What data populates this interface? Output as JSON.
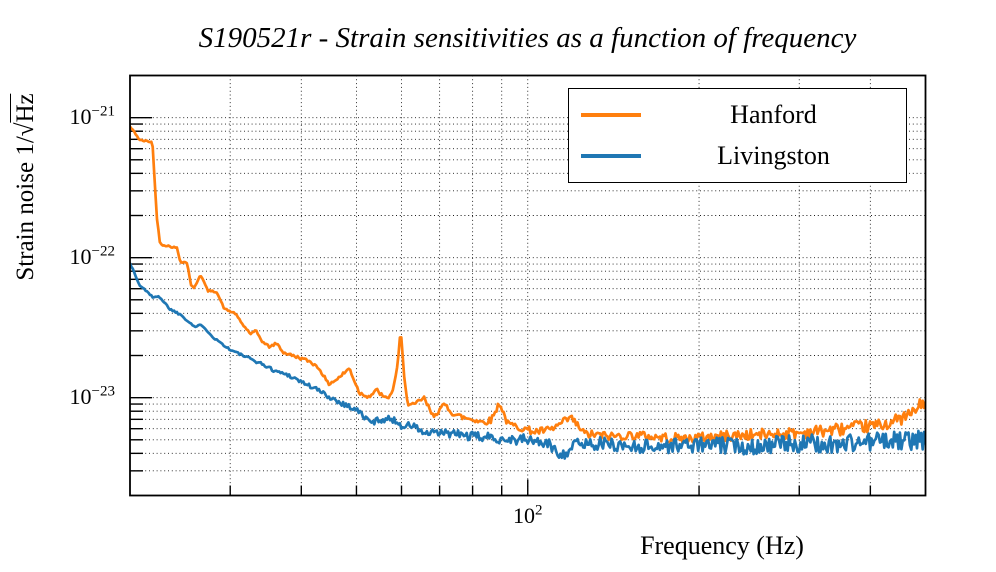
{
  "chart_data": {
    "type": "line",
    "title": "S190521r - Strain sensitivities as a function of frequency",
    "xlabel": "Frequency (Hz)",
    "ylabel": "Strain noise 1/√Hz",
    "ylabel_parts": {
      "prefix": "Strain noise 1/",
      "radical": "√",
      "sqrt_arg": "Hz"
    },
    "x_scale": "log",
    "y_scale": "log",
    "xlim": [
      20,
      500
    ],
    "ylim": [
      2e-24,
      2e-21
    ],
    "grid": "dotted black, major and minor, both axes",
    "x_minor_ticks": [
      30,
      40,
      50,
      60,
      70,
      80,
      90,
      200,
      300,
      400
    ],
    "x_major_ticks": [
      100
    ],
    "x_tick_labels": [
      {
        "base": "10",
        "exp": "2",
        "value": 100
      }
    ],
    "y_major_ticks": [
      1e-21,
      1e-22,
      1e-23
    ],
    "y_tick_labels": [
      {
        "base": "10",
        "exp": "−21",
        "value": 1e-21
      },
      {
        "base": "10",
        "exp": "−22",
        "value": 1e-22
      },
      {
        "base": "10",
        "exp": "−23",
        "value": 1e-23
      }
    ],
    "legend": {
      "position": "upper right",
      "entries": [
        "Hanford",
        "Livingston"
      ]
    },
    "series": [
      {
        "name": "Hanford",
        "color": "#ff7f0e",
        "points": [
          [
            20,
            8.6e-22
          ],
          [
            20.4,
            7.8e-22
          ],
          [
            20.8,
            6.9e-22
          ],
          [
            21.9,
            6.7e-22
          ],
          [
            22.3,
            1.9e-22
          ],
          [
            22.6,
            1.25e-22
          ],
          [
            24.2,
            1.17e-22
          ],
          [
            24.5,
            9.4e-23
          ],
          [
            25.2,
            9.2e-23
          ],
          [
            25.6,
            6.4e-23
          ],
          [
            25.9,
            6e-23
          ],
          [
            26.6,
            7.6e-23
          ],
          [
            27.4,
            5.8e-23
          ],
          [
            28.4,
            5.7e-23
          ],
          [
            29.3,
            4.3e-23
          ],
          [
            30.6,
            4e-23
          ],
          [
            31.6,
            3.3e-23
          ],
          [
            32.6,
            2.85e-23
          ],
          [
            33.3,
            3e-23
          ],
          [
            34.2,
            2.5e-23
          ],
          [
            35.2,
            2.3e-23
          ],
          [
            36.2,
            2.45e-23
          ],
          [
            37.2,
            2.1e-23
          ],
          [
            38.6,
            2e-23
          ],
          [
            40.1,
            1.9e-23
          ],
          [
            41.6,
            1.8e-23
          ],
          [
            43.1,
            1.6e-23
          ],
          [
            44.6,
            1.25e-23
          ],
          [
            46.2,
            1.35e-23
          ],
          [
            48.6,
            1.62e-23
          ],
          [
            50.6,
            1.08e-23
          ],
          [
            52.6,
            1.02e-23
          ],
          [
            54.4,
            1.13e-23
          ],
          [
            56.1,
            9.8e-24
          ],
          [
            57.6,
            1.05e-23
          ],
          [
            58.9,
            1.55e-23
          ],
          [
            59.8,
            3e-23
          ],
          [
            60.6,
            1.5e-23
          ],
          [
            61.6,
            8.8e-24
          ],
          [
            63.1,
            8.8e-24
          ],
          [
            65.6,
            1e-23
          ],
          [
            68.1,
            7.4e-24
          ],
          [
            71.6,
            8.9e-24
          ],
          [
            74.2,
            7.6e-24
          ],
          [
            77.2,
            7.2e-24
          ],
          [
            80.2,
            7e-24
          ],
          [
            83.2,
            6.7e-24
          ],
          [
            86.2,
            6.9e-24
          ],
          [
            89.2,
            9.2e-24
          ],
          [
            92.2,
            6.5e-24
          ],
          [
            97.2,
            6.1e-24
          ],
          [
            103,
            5.7e-24
          ],
          [
            110,
            5.9e-24
          ],
          [
            119,
            7.2e-24
          ],
          [
            126,
            5.5e-24
          ],
          [
            140,
            5.3e-24
          ],
          [
            155,
            5.4e-24
          ],
          [
            170,
            5.2e-24
          ],
          [
            190,
            5.1e-24
          ],
          [
            215,
            5.3e-24
          ],
          [
            240,
            5.4e-24
          ],
          [
            270,
            5.5e-24
          ],
          [
            300,
            5.6e-24
          ],
          [
            330,
            5.8e-24
          ],
          [
            360,
            6e-24
          ],
          [
            390,
            6.2e-24
          ],
          [
            420,
            6.4e-24
          ],
          [
            450,
            7e-24
          ],
          [
            470,
            7.6e-24
          ],
          [
            485,
            8.4e-24
          ],
          [
            495,
            9.4e-24
          ],
          [
            500,
            9e-24
          ]
        ]
      },
      {
        "name": "Livingston",
        "color": "#1f77b4",
        "points": [
          [
            20,
            9.2e-23
          ],
          [
            20.4,
            7.6e-23
          ],
          [
            20.8,
            6.3e-23
          ],
          [
            21.5,
            5.7e-23
          ],
          [
            22,
            5.1e-23
          ],
          [
            22.4,
            5.4e-23
          ],
          [
            23.5,
            4.3e-23
          ],
          [
            24.6,
            3.9e-23
          ],
          [
            26,
            3.2e-23
          ],
          [
            26.8,
            3.3e-23
          ],
          [
            28,
            2.7e-23
          ],
          [
            30,
            2.2e-23
          ],
          [
            32,
            1.95e-23
          ],
          [
            34,
            1.75e-23
          ],
          [
            36,
            1.55e-23
          ],
          [
            38,
            1.45e-23
          ],
          [
            40,
            1.3e-23
          ],
          [
            42.5,
            1.15e-23
          ],
          [
            45,
            1e-23
          ],
          [
            47.5,
            9e-24
          ],
          [
            50,
            8.2e-24
          ],
          [
            53,
            6.6e-24
          ],
          [
            55,
            7e-24
          ],
          [
            58,
            7e-24
          ],
          [
            60,
            6.3e-24
          ],
          [
            63,
            6.3e-24
          ],
          [
            66,
            5.5e-24
          ],
          [
            70,
            5.6e-24
          ],
          [
            75,
            5.5e-24
          ],
          [
            79,
            5.3e-24
          ],
          [
            85,
            5.2e-24
          ],
          [
            90,
            5.1e-24
          ],
          [
            95,
            5e-24
          ],
          [
            100,
            5e-24
          ],
          [
            108,
            4.7e-24
          ],
          [
            115,
            3.9e-24
          ],
          [
            122,
            4.7e-24
          ],
          [
            135,
            4.7e-24
          ],
          [
            150,
            4.5e-24
          ],
          [
            170,
            4.5e-24
          ],
          [
            190,
            4.6e-24
          ],
          [
            210,
            4.6e-24
          ],
          [
            240,
            4.5e-24
          ],
          [
            270,
            4.6e-24
          ],
          [
            300,
            4.7e-24
          ],
          [
            340,
            4.6e-24
          ],
          [
            380,
            4.8e-24
          ],
          [
            420,
            4.9e-24
          ],
          [
            460,
            4.9e-24
          ],
          [
            500,
            5e-24
          ]
        ]
      }
    ]
  }
}
